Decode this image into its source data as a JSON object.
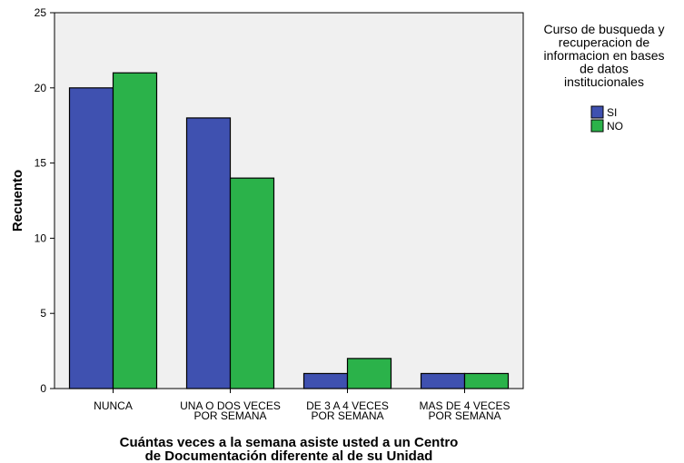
{
  "chart_data": {
    "type": "bar",
    "categories": [
      [
        "NUNCA"
      ],
      [
        "UNA O DOS VECES",
        "POR SEMANA"
      ],
      [
        "DE 3 A 4 VECES",
        "POR SEMANA"
      ],
      [
        "MAS DE 4 VECES",
        "POR SEMANA"
      ]
    ],
    "series": [
      {
        "name": "SI",
        "values": [
          20,
          18,
          1,
          1
        ],
        "color": "#3f51b0"
      },
      {
        "name": "NO",
        "values": [
          21,
          14,
          2,
          1
        ],
        "color": "#2bb24a"
      }
    ],
    "ylabel": "Recuento",
    "xlabel": [
      "Cuántas veces a la semana asiste usted a un Centro",
      "de Documentación diferente al de su Unidad"
    ],
    "ylim": [
      0,
      25
    ],
    "yticks": [
      0,
      5,
      10,
      15,
      20,
      25
    ],
    "legend_title": [
      "Curso de busqueda y",
      "recuperacion de",
      "informacion en bases",
      "de datos",
      "institucionales"
    ],
    "legend_position": "top-right",
    "plot_background": "#f0f0f0",
    "grid": false
  }
}
